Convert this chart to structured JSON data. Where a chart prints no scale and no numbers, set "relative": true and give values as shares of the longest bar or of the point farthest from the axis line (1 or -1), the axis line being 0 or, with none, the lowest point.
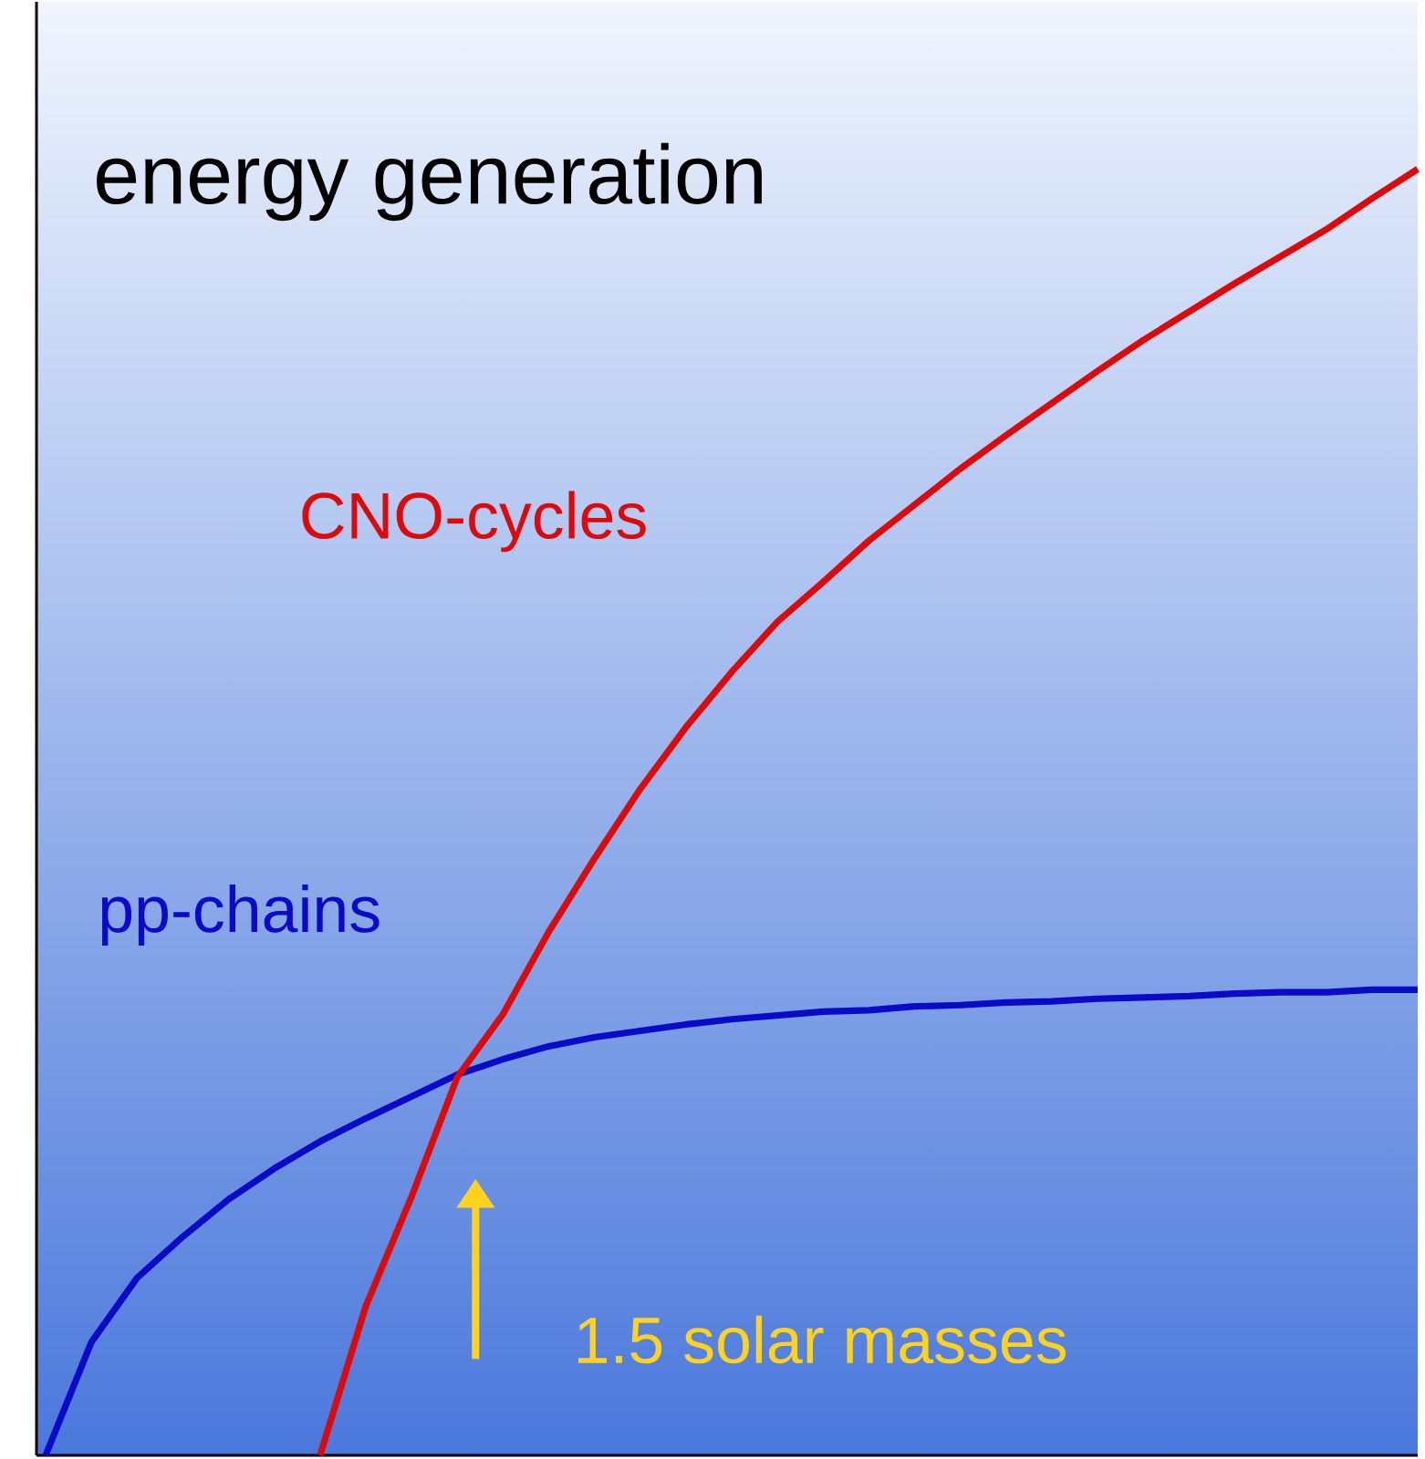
{
  "chart_data": {
    "type": "line",
    "title": "energy generation",
    "relative": true,
    "marker": "none",
    "line_style": "solid",
    "categories": [
      null,
      null,
      null,
      null,
      null,
      null,
      null,
      null,
      null,
      null,
      null,
      null,
      null,
      null,
      null,
      null,
      null,
      null,
      null,
      null,
      null,
      null,
      null,
      null,
      null,
      null,
      null,
      null,
      null,
      null,
      null
    ],
    "series": [
      {
        "name": "pp-chains",
        "color": "#0a0ac8",
        "values": [
          0,
          0.088,
          0.138,
          0.17,
          0.199,
          0.223,
          0.244,
          0.262,
          0.279,
          0.296,
          0.308,
          0.318,
          0.325,
          0.33,
          0.335,
          0.339,
          0.342,
          0.345,
          0.346,
          0.349,
          0.35,
          0.352,
          0.353,
          0.355,
          0.356,
          0.357,
          0.359,
          0.36,
          0.36,
          0.362,
          0.362
        ]
      },
      {
        "name": "CNO-cycles",
        "color": "#dc0a0a",
        "values": [
          null,
          null,
          null,
          null,
          null,
          null,
          0,
          0.116,
          0.201,
          0.294,
          0.343,
          0.407,
          0.464,
          0.518,
          0.566,
          0.609,
          0.648,
          0.679,
          0.711,
          0.739,
          0.767,
          0.793,
          0.818,
          0.843,
          0.867,
          0.889,
          0.911,
          0.932,
          0.953,
          0.977,
          1
        ]
      }
    ],
    "annotations": [
      "1.5 solar masses"
    ]
  }
}
